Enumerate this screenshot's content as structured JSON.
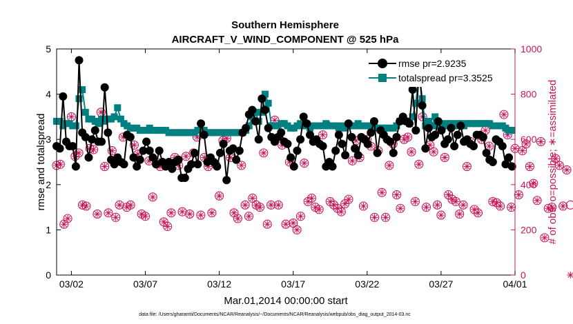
{
  "chart_data": {
    "type": "line",
    "title_line1": "Southern Hemisphere",
    "title_line2": "AIRCRAFT_V_WIND_COMPONENT @ 525 hPa",
    "xlabel": "Mar.01,2014 00:00:00 start",
    "ylabel_left": "rmse and totalspread",
    "ylabel_right": "# of obs: o=possible; ∗=assimilated",
    "footnote": "data file: /Users/gharamti/Documents/NCAR/Reanalysis/~/Documents/NCAR/Reanalysis/webpub/obs_diag_output_2014-03.nc",
    "xlim": [
      1,
      32
    ],
    "ylim_left": [
      0,
      5
    ],
    "ylim_right": [
      0,
      1000
    ],
    "x_ticks": [
      {
        "value": 2,
        "label": "03/02"
      },
      {
        "value": 7,
        "label": "03/07"
      },
      {
        "value": 12,
        "label": "03/12"
      },
      {
        "value": 17,
        "label": "03/17"
      },
      {
        "value": 22,
        "label": "03/22"
      },
      {
        "value": 27,
        "label": "03/27"
      },
      {
        "value": 32,
        "label": "04/01"
      }
    ],
    "y_ticks_left": [
      0,
      1,
      2,
      3,
      4,
      5
    ],
    "y_ticks_right": [
      0,
      200,
      400,
      600,
      800,
      1000
    ],
    "legend_position": "top-right",
    "colors": {
      "rmse": "#000000",
      "spread": "#008080",
      "obs": "#c8155a"
    },
    "series": [
      {
        "name": "rmse",
        "legend_label": "rmse  pr=2.9235",
        "axis": "left",
        "marker": "circle",
        "values": [
          2.85,
          2.8,
          3.95,
          2.95,
          2.85,
          2.85,
          2.4,
          4.75,
          3.15,
          3.05,
          2.6,
          3.0,
          3.2,
          2.95,
          2.95,
          4.15,
          3.15,
          2.55,
          2.45,
          2.6,
          2.5,
          2.45,
          3.1,
          3.05,
          2.6,
          2.4,
          2.55,
          2.75,
          2.95,
          2.75,
          2.6,
          2.45,
          2.75,
          2.5,
          2.4,
          2.5,
          2.35,
          2.5,
          2.55,
          2.15,
          2.15,
          2.35,
          2.45,
          2.7,
          2.45,
          3.35,
          3.1,
          2.5,
          2.6,
          2.5,
          2.4,
          2.7,
          2.9,
          2.1,
          2.75,
          2.8,
          2.55,
          2.75,
          3.15,
          3.25,
          3.55,
          3.65,
          3.4,
          3.0,
          3.9,
          3.65,
          3.25,
          3.05,
          2.95,
          3.05,
          3.15,
          2.95,
          2.9,
          2.6,
          2.4,
          2.75,
          3.0,
          3.5,
          3.35,
          3.1,
          2.95,
          3.0,
          2.9,
          2.85,
          2.4,
          2.5,
          2.4,
          2.75,
          3.1,
          2.9,
          2.65,
          3.35,
          3.05,
          2.8,
          2.65,
          3.05,
          3.0,
          2.9,
          3.15,
          3.4,
          2.7,
          3.2,
          3.1,
          3.0,
          2.95,
          2.7,
          3.05,
          3.4,
          3.5,
          3.4,
          3.35,
          4.1,
          3.2,
          4.6,
          3.75,
          2.8,
          3.25,
          3.05,
          3.1,
          3.4,
          3.2,
          2.9,
          3.0,
          3.25,
          2.85,
          3.1,
          3.3,
          2.95,
          3.0,
          2.9,
          2.85,
          3.1,
          3.1,
          3.05,
          2.7,
          2.55,
          2.5,
          3.0,
          2.95,
          2.85,
          2.45,
          2.6,
          2.4
        ]
      },
      {
        "name": "totalspread",
        "legend_label": "totalspread pr=3.3525",
        "axis": "left",
        "marker": "square",
        "values": [
          3.4,
          3.4,
          3.3,
          3.35,
          3.35,
          3.3,
          3.3,
          3.9,
          4.1,
          3.6,
          3.45,
          3.45,
          3.4,
          3.35,
          3.45,
          3.4,
          3.45,
          3.45,
          3.5,
          3.7,
          3.45,
          3.35,
          3.3,
          3.25,
          3.25,
          3.25,
          3.2,
          3.2,
          3.2,
          3.25,
          3.2,
          3.2,
          3.2,
          3.2,
          3.2,
          3.15,
          3.15,
          3.15,
          3.15,
          3.15,
          3.15,
          3.15,
          3.15,
          3.15,
          3.2,
          3.2,
          3.2,
          3.15,
          3.15,
          3.15,
          3.15,
          3.15,
          3.15,
          3.15,
          3.15,
          3.15,
          3.15,
          3.15,
          3.15,
          3.2,
          3.3,
          3.5,
          3.6,
          3.4,
          3.6,
          4.0,
          3.8,
          3.3,
          3.3,
          3.3,
          3.35,
          3.35,
          3.3,
          3.25,
          3.25,
          3.3,
          3.35,
          3.3,
          3.3,
          3.25,
          3.3,
          3.3,
          3.3,
          3.3,
          3.35,
          3.3,
          3.3,
          3.3,
          3.25,
          3.3,
          3.25,
          3.3,
          3.3,
          3.3,
          3.35,
          3.3,
          3.3,
          3.3,
          3.3,
          3.3,
          3.25,
          3.25,
          3.25,
          3.25,
          3.25,
          3.25,
          3.3,
          3.4,
          3.4,
          3.4,
          3.35,
          3.5,
          3.8,
          4.5,
          3.9,
          3.3,
          3.4,
          3.3,
          3.5,
          3.3,
          3.35,
          3.3,
          3.35,
          3.35,
          3.3,
          3.35,
          3.35,
          3.3,
          3.35,
          3.35,
          3.35,
          3.35,
          3.35,
          3.35,
          3.35,
          3.35,
          3.3,
          3.3,
          3.3,
          3.3,
          3.25,
          3.2,
          3.2
        ]
      },
      {
        "name": "possible",
        "axis": "right",
        "marker": "circle-star",
        "x_start": 1,
        "x_step": 0.25,
        "values": [
          485,
          490,
          225,
          250,
          700,
          525,
          540,
          310,
          305,
          560,
          555,
          270,
          720,
          480,
          275,
          550,
          255,
          310,
          610,
          300,
          310,
          575,
          535,
          270,
          260,
          505,
          345,
          500,
          480,
          235,
          215,
          275,
          520,
          485,
          280,
          525,
          270,
          540,
          610,
          265,
          520,
          480,
          275,
          490,
          350,
          595,
          605,
          520,
          275,
          250,
          485,
          310,
          260,
          340,
          310,
          300,
          540,
          225,
          310,
          685,
          310,
          575,
          225,
          500,
          230,
          200,
          260,
          495,
          325,
          340,
          300,
          290,
          620,
          665,
          325,
          310,
          295,
          280,
          315,
          335,
          505,
          595,
          520,
          305,
          600,
          570,
          255,
          550,
          365,
          255,
          485,
          580,
          355,
          295,
          600,
          610,
          545,
          325,
          490,
          700,
          300,
          575,
          545,
          310,
          265,
          520,
          355,
          335,
          325,
          270,
          310,
          480,
          590,
          290,
          275,
          600,
          640,
          570,
          325,
          320,
          305,
          710,
          620,
          300,
          560,
          355,
          550,
          580,
          480,
          405,
          330,
          590,
          165,
          295,
          300,
          515,
          485,
          305,
          465,
          310
        ]
      },
      {
        "name": "assimilated",
        "axis": "right",
        "marker": "star",
        "x_start": 1,
        "x_step": 0.25,
        "values": [
          485,
          490,
          225,
          250,
          700,
          525,
          540,
          310,
          305,
          560,
          555,
          270,
          720,
          480,
          275,
          550,
          255,
          310,
          610,
          300,
          310,
          575,
          535,
          270,
          260,
          505,
          345,
          500,
          480,
          235,
          215,
          275,
          520,
          485,
          280,
          525,
          270,
          540,
          610,
          265,
          520,
          480,
          275,
          490,
          350,
          595,
          605,
          520,
          275,
          250,
          485,
          310,
          260,
          340,
          310,
          300,
          540,
          225,
          310,
          685,
          310,
          575,
          225,
          500,
          230,
          200,
          260,
          495,
          325,
          340,
          300,
          290,
          620,
          665,
          325,
          310,
          295,
          280,
          315,
          335,
          505,
          595,
          520,
          305,
          600,
          570,
          255,
          550,
          365,
          255,
          485,
          580,
          355,
          295,
          600,
          610,
          545,
          325,
          490,
          700,
          300,
          575,
          545,
          310,
          265,
          520,
          355,
          335,
          325,
          270,
          310,
          480,
          590,
          290,
          275,
          600,
          640,
          570,
          325,
          320,
          305,
          710,
          620,
          300,
          560,
          355,
          550,
          580,
          480,
          405,
          330,
          590,
          165,
          295,
          300,
          515,
          485,
          305,
          465,
          0
        ]
      }
    ]
  }
}
